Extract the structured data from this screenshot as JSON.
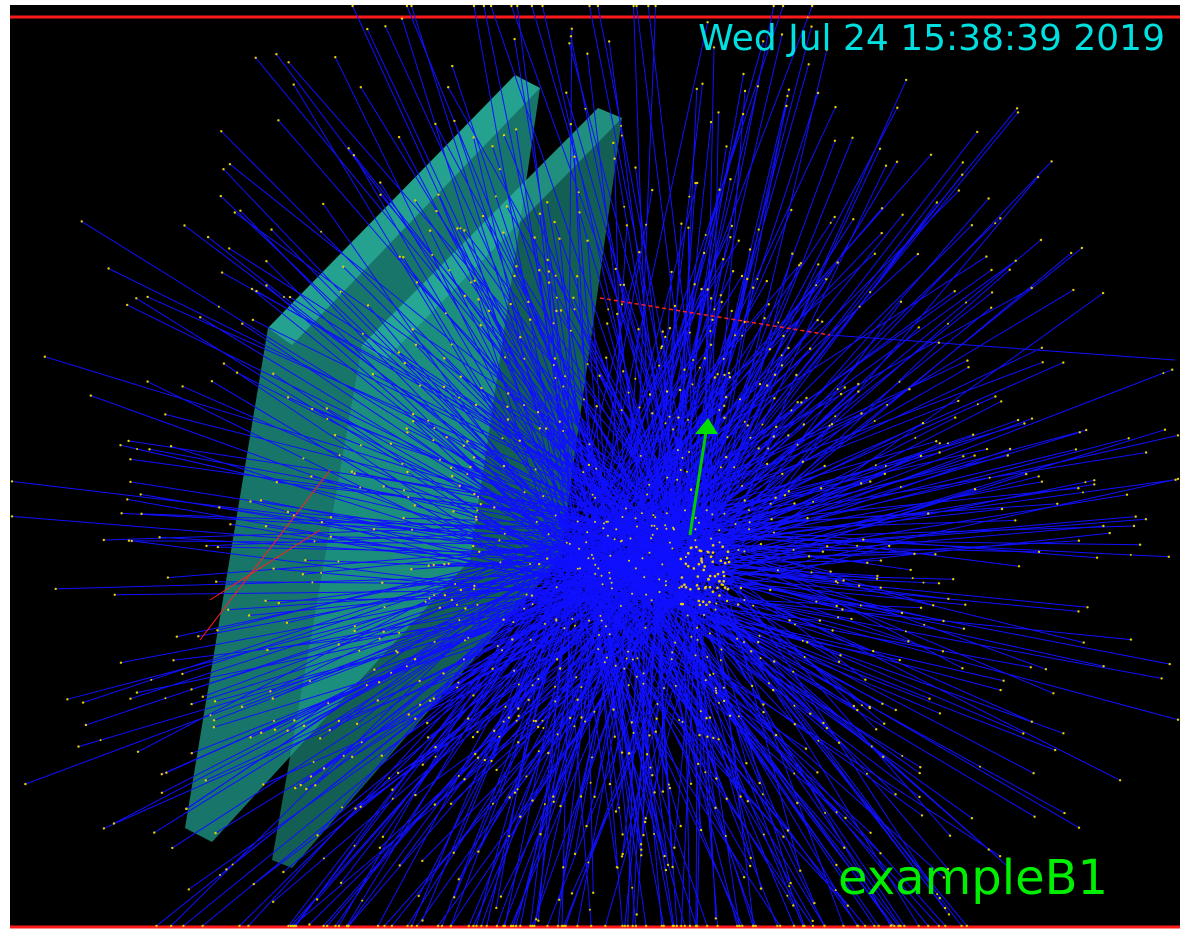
{
  "header": {
    "timestamp": "Wed Jul 24 15:38:39 2019"
  },
  "footer": {
    "label": "exampleB1"
  }
}
